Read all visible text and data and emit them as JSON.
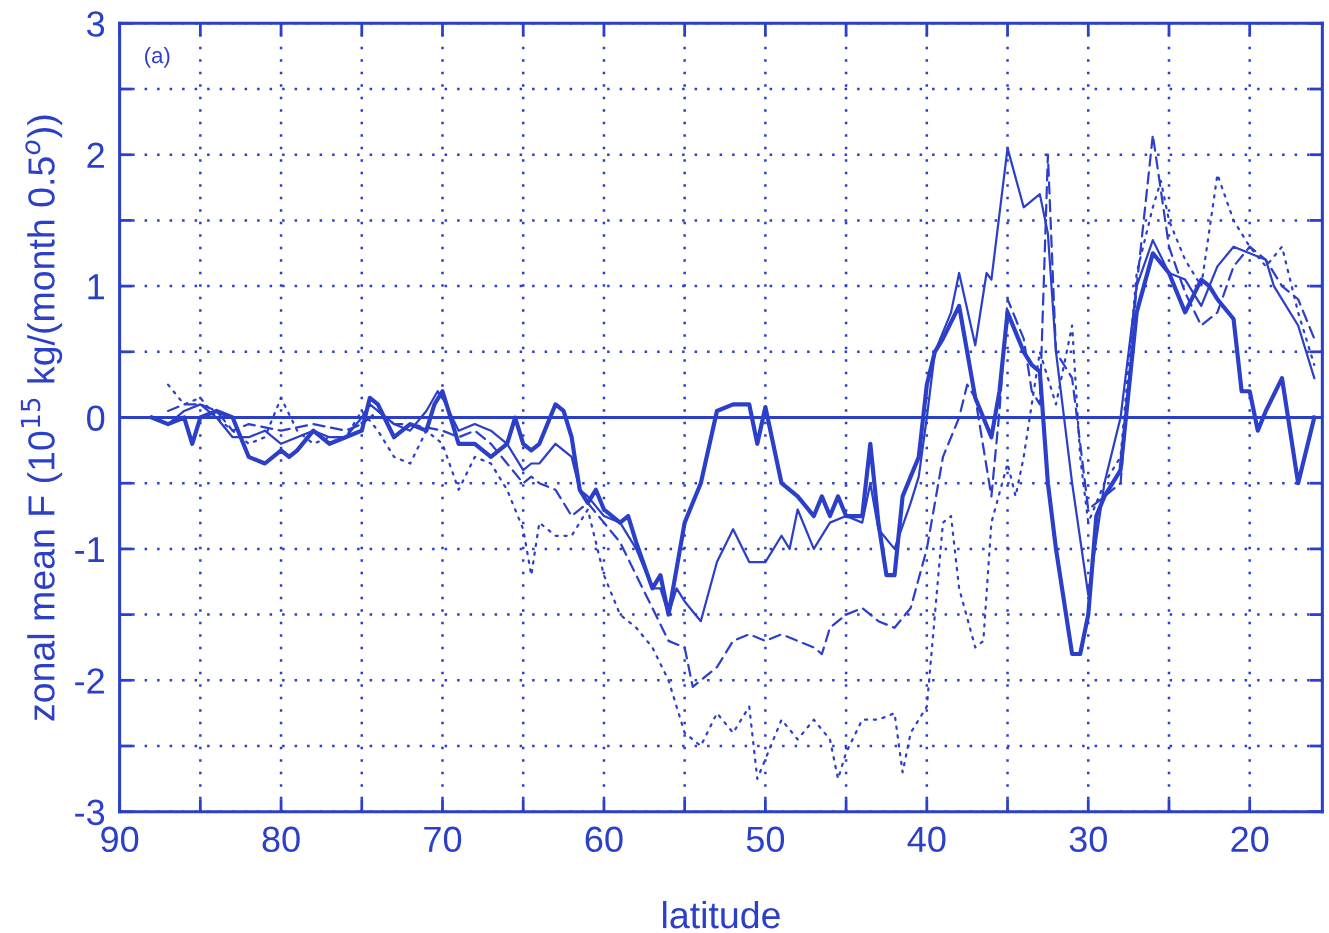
{
  "chart_data": {
    "type": "line",
    "xlabel": "latitude",
    "ylabel": "zonal mean F (10$^{15}$ kg/(month 0.5$^{o}$))",
    "annotations": [
      "(a)"
    ],
    "xlim": [
      90,
      15.5
    ],
    "ylim": [
      -3,
      3
    ],
    "xticks": [
      90,
      {
        "value": 85,
        "label": null
      },
      80,
      {
        "value": 75,
        "label": null
      },
      70,
      {
        "value": 65,
        "label": null
      },
      60,
      {
        "value": 55,
        "label": null
      },
      50,
      {
        "value": 45,
        "label": null
      },
      40,
      {
        "value": 35,
        "label": null
      },
      30,
      {
        "value": 25,
        "label": null
      },
      20
    ],
    "yticks": [
      -3,
      {
        "value": -2.5,
        "label": null
      },
      -2,
      {
        "value": -1.5,
        "label": null
      },
      -1,
      {
        "value": -0.5,
        "label": null
      },
      0,
      {
        "value": 0.5,
        "label": null
      },
      1,
      {
        "value": 1.5,
        "label": null
      },
      2,
      {
        "value": 2.5,
        "label": null
      },
      3
    ],
    "grid": true,
    "legend": false,
    "marker": "none",
    "ref_lines": [
      {
        "axis": "y",
        "value": 0,
        "color": "#2b3fc8",
        "line_style": "solid"
      }
    ],
    "series": [
      {
        "color": "#2b3fc8",
        "line_style": "solid",
        "x": [
          88,
          87,
          86,
          85.5,
          85,
          84,
          83,
          82,
          81,
          80,
          79.5,
          79,
          78,
          77,
          76,
          75,
          74.5,
          74,
          73,
          72,
          71,
          70.5,
          70,
          69,
          68,
          67,
          66,
          65.5,
          65,
          64.5,
          64,
          63,
          62.5,
          62,
          61.5,
          61,
          60.5,
          60,
          59,
          58.5,
          58,
          57,
          56.5,
          56,
          55,
          54,
          53,
          52,
          51,
          50.5,
          50,
          49,
          48,
          47,
          46.5,
          46,
          45.5,
          45,
          44,
          43.5,
          43,
          42.5,
          42,
          41.5,
          41,
          40.5,
          40,
          39.5,
          39,
          38,
          37.5,
          37,
          36,
          35.5,
          35,
          34,
          33.5,
          33,
          32.5,
          32,
          31,
          30.5,
          30,
          29.5,
          29,
          28,
          27,
          26,
          25,
          24,
          23,
          22.5,
          22,
          21,
          20.5,
          20,
          19.5,
          19,
          18,
          17,
          16
        ],
        "values": [
          0,
          -0.05,
          0,
          -0.2,
          0,
          0.05,
          0,
          -0.3,
          -0.35,
          -0.25,
          -0.3,
          -0.25,
          -0.1,
          -0.2,
          -0.15,
          -0.1,
          0.15,
          0.1,
          -0.15,
          -0.05,
          -0.1,
          0.1,
          0.2,
          -0.2,
          -0.2,
          -0.3,
          -0.2,
          0,
          -0.2,
          -0.25,
          -0.2,
          0.1,
          0.05,
          -0.15,
          -0.55,
          -0.65,
          -0.55,
          -0.7,
          -0.8,
          -0.75,
          -0.95,
          -1.3,
          -1.2,
          -1.5,
          -0.8,
          -0.5,
          0.05,
          0.1,
          0.1,
          -0.2,
          0.08,
          -0.5,
          -0.6,
          -0.75,
          -0.6,
          -0.75,
          -0.6,
          -0.75,
          -0.75,
          -0.2,
          -0.8,
          -1.2,
          -1.2,
          -0.6,
          -0.45,
          -0.3,
          0.25,
          0.5,
          0.6,
          0.85,
          0.5,
          0.15,
          -0.15,
          0.2,
          0.8,
          0.5,
          0.4,
          0.35,
          -0.5,
          -1,
          -1.8,
          -1.8,
          -1.5,
          -0.75,
          -0.6,
          -0.4,
          0.8,
          1.25,
          1.1,
          0.8,
          1.05,
          1,
          0.9,
          0.75,
          0.2,
          0.2,
          -0.1,
          0.05,
          0.3,
          -0.5,
          0
        ]
      },
      {
        "color": "#2b3fc8",
        "line_style": "solid",
        "x": [
          88,
          87,
          86,
          85,
          84,
          83,
          82,
          81,
          80,
          79,
          78,
          77,
          76,
          75,
          74.5,
          74,
          73,
          72,
          71,
          70.3,
          70,
          69,
          68,
          67,
          66,
          65,
          64.5,
          64,
          63,
          62,
          61.5,
          61,
          60,
          59,
          58,
          57,
          56.5,
          56,
          55.5,
          55,
          54,
          53,
          52,
          51,
          50,
          49,
          48.5,
          48,
          47,
          46,
          45,
          44,
          43.5,
          43,
          42,
          41,
          40.5,
          40,
          39.5,
          38.5,
          38,
          37,
          36.3,
          36,
          35,
          34,
          33,
          32.5,
          32,
          31,
          30,
          29,
          28,
          27,
          26,
          25,
          24,
          23,
          22,
          21,
          20,
          19,
          18.5,
          17,
          16
        ],
        "values": [
          0,
          -0.05,
          0.05,
          0.1,
          0,
          -0.15,
          -0.15,
          -0.1,
          -0.2,
          -0.15,
          -0.1,
          -0.15,
          -0.15,
          0,
          0.1,
          0.05,
          -0.05,
          -0.1,
          0.05,
          0.2,
          0.15,
          -0.1,
          -0.05,
          -0.1,
          -0.2,
          -0.4,
          -0.35,
          -0.35,
          -0.2,
          -0.3,
          -0.55,
          -0.6,
          -0.75,
          -0.8,
          -1,
          -1.3,
          -1.3,
          -1.5,
          -1.3,
          -1.4,
          -1.55,
          -1.1,
          -0.85,
          -1.1,
          -1.1,
          -0.9,
          -1,
          -0.7,
          -1,
          -0.8,
          -0.75,
          -0.8,
          -0.5,
          -0.85,
          -1,
          -0.65,
          -0.45,
          0,
          0.5,
          0.8,
          1.1,
          0.55,
          1.1,
          1.05,
          2.05,
          1.6,
          1.7,
          1.4,
          0.5,
          -0.5,
          -1.35,
          -0.5,
          0,
          1,
          1.35,
          1.1,
          1.05,
          0.85,
          1.15,
          1.3,
          1.25,
          1.2,
          1,
          0.7,
          0.3
        ]
      },
      {
        "color": "#2b3fc8",
        "line_style": "dashed",
        "x": [
          87,
          86,
          85,
          84,
          83,
          82,
          80,
          78,
          76,
          75,
          74,
          73,
          72,
          70,
          69,
          68,
          67,
          66,
          65,
          64.5,
          64,
          63,
          62,
          61,
          60,
          59,
          58,
          57,
          56,
          55,
          54.5,
          54,
          53,
          52,
          51,
          50,
          49,
          48,
          47,
          46.5,
          46,
          45,
          44,
          43,
          42,
          41,
          40,
          39,
          38,
          37.5,
          37,
          36,
          35.5,
          35,
          34,
          33.5,
          33,
          32.5,
          32,
          31,
          30,
          29,
          28,
          27,
          26,
          25,
          24,
          23,
          22,
          21,
          20,
          19,
          18,
          17,
          16
        ],
        "values": [
          0.05,
          0.1,
          0.1,
          0.05,
          -0.1,
          -0.05,
          -0.1,
          -0.05,
          -0.1,
          -0.05,
          0.05,
          -0.05,
          -0.05,
          -0.1,
          -0.15,
          -0.1,
          -0.2,
          -0.35,
          -0.5,
          -0.45,
          -0.5,
          -0.55,
          -0.75,
          -0.65,
          -0.8,
          -0.95,
          -1.2,
          -1.45,
          -1.7,
          -1.75,
          -2.05,
          -2,
          -1.9,
          -1.7,
          -1.65,
          -1.7,
          -1.65,
          -1.7,
          -1.75,
          -1.8,
          -1.6,
          -1.5,
          -1.45,
          -1.55,
          -1.6,
          -1.45,
          -1,
          -0.3,
          0,
          0.25,
          0.15,
          -0.6,
          0.05,
          0.9,
          0.6,
          0.2,
          0.1,
          2,
          0.5,
          0.3,
          -0.7,
          -0.6,
          -0.5,
          1,
          2.15,
          1.3,
          0.95,
          0.7,
          0.8,
          1.15,
          1.3,
          1.2,
          1,
          0.9,
          0.6
        ]
      },
      {
        "color": "#2b3fc8",
        "line_style": "dotted",
        "x": [
          87,
          86,
          85,
          84,
          83,
          82,
          81,
          80,
          79,
          78,
          77,
          76,
          75,
          74,
          73,
          72,
          71,
          70,
          69,
          68,
          67,
          66,
          65,
          64.5,
          64,
          63,
          62,
          61,
          60,
          59,
          58,
          57,
          56,
          55,
          54,
          53,
          52,
          51,
          50.5,
          50,
          49,
          48,
          47,
          46,
          45.5,
          45,
          44,
          43,
          42,
          41.5,
          41,
          40,
          39.5,
          39,
          38.5,
          38,
          37,
          36.5,
          36,
          35,
          34.5,
          34,
          33,
          32,
          31,
          30.5,
          30,
          29,
          28,
          27,
          26,
          25.5,
          25,
          24,
          23,
          22,
          21,
          20,
          19,
          18,
          17,
          16
        ],
        "values": [
          0.25,
          0.1,
          0.15,
          0,
          -0.1,
          -0.2,
          -0.15,
          0.15,
          -0.1,
          -0.2,
          -0.15,
          -0.15,
          0.05,
          -0.1,
          -0.3,
          -0.35,
          -0.1,
          -0.2,
          -0.55,
          -0.3,
          -0.35,
          -0.55,
          -0.85,
          -1.2,
          -0.8,
          -0.9,
          -0.9,
          -0.7,
          -1.2,
          -1.5,
          -1.6,
          -1.75,
          -2,
          -2.4,
          -2.5,
          -2.25,
          -2.4,
          -2.2,
          -2.75,
          -2.6,
          -2.3,
          -2.45,
          -2.3,
          -2.45,
          -2.75,
          -2.55,
          -2.3,
          -2.3,
          -2.25,
          -2.7,
          -2.4,
          -2.2,
          -1.5,
          -0.8,
          -0.75,
          -1.3,
          -1.75,
          -1.7,
          -0.8,
          -0.35,
          -0.6,
          -0.3,
          0.5,
          0.1,
          0.7,
          -0.3,
          -0.8,
          -0.5,
          -0.3,
          1.1,
          1.6,
          1.8,
          1.5,
          1.2,
          1,
          1.85,
          1.5,
          1.3,
          1.15,
          1.3,
          0.8,
          0.4
        ]
      }
    ]
  }
}
